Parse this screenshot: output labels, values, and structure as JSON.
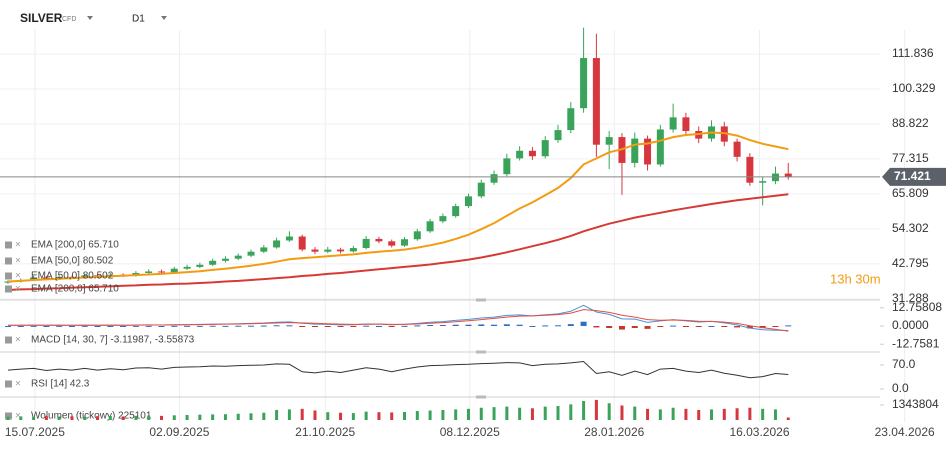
{
  "header": {
    "symbol": "SILVER",
    "kind": "CFD",
    "timeframe": "D1"
  },
  "chart_data": {
    "type": "candlestick",
    "up_color": "#3aa35a",
    "down_color": "#d6363d",
    "candles": [
      [
        36.6,
        37.4,
        36.2,
        37.0
      ],
      [
        37.0,
        38.0,
        36.7,
        37.5
      ],
      [
        37.5,
        38.9,
        37.2,
        38.3
      ],
      [
        38.3,
        38.8,
        37.4,
        37.8
      ],
      [
        37.8,
        39.1,
        37.5,
        38.5
      ],
      [
        38.5,
        38.9,
        37.8,
        38.2
      ],
      [
        38.2,
        39.6,
        37.9,
        39.0
      ],
      [
        39.0,
        39.5,
        38.2,
        38.6
      ],
      [
        38.6,
        39.8,
        38.3,
        39.2
      ],
      [
        39.2,
        39.7,
        38.5,
        38.9
      ],
      [
        38.9,
        40.4,
        38.6,
        39.8
      ],
      [
        39.8,
        41.0,
        39.4,
        40.3
      ],
      [
        40.3,
        40.9,
        39.6,
        40.0
      ],
      [
        40.0,
        41.8,
        39.7,
        41.2
      ],
      [
        41.2,
        42.5,
        40.8,
        41.8
      ],
      [
        41.8,
        43.2,
        41.4,
        42.5
      ],
      [
        42.5,
        44.5,
        42.1,
        43.8
      ],
      [
        43.8,
        45.3,
        43.3,
        44.5
      ],
      [
        44.5,
        46.2,
        44.0,
        45.5
      ],
      [
        45.5,
        47.5,
        45.0,
        46.8
      ],
      [
        46.8,
        49.0,
        46.3,
        48.2
      ],
      [
        48.2,
        51.4,
        47.8,
        50.5
      ],
      [
        50.5,
        53.5,
        50.0,
        51.8
      ],
      [
        51.8,
        52.4,
        46.9,
        47.5
      ],
      [
        47.5,
        48.3,
        46.0,
        46.8
      ],
      [
        46.8,
        48.4,
        46.3,
        47.5
      ],
      [
        47.5,
        48.1,
        46.2,
        46.9
      ],
      [
        46.9,
        48.7,
        46.5,
        48.0
      ],
      [
        48.0,
        51.9,
        47.6,
        51.0
      ],
      [
        51.0,
        51.7,
        49.6,
        50.2
      ],
      [
        50.2,
        50.8,
        48.2,
        48.8
      ],
      [
        48.8,
        51.6,
        48.4,
        50.9
      ],
      [
        50.9,
        54.3,
        50.4,
        53.5
      ],
      [
        53.5,
        57.6,
        53.0,
        56.8
      ],
      [
        56.8,
        59.4,
        56.2,
        58.5
      ],
      [
        58.5,
        62.6,
        58.0,
        61.8
      ],
      [
        61.8,
        65.9,
        61.2,
        65.0
      ],
      [
        65.0,
        70.5,
        64.4,
        69.5
      ],
      [
        69.5,
        73.5,
        68.8,
        72.3
      ],
      [
        72.3,
        79.0,
        71.6,
        77.5
      ],
      [
        77.5,
        81.5,
        76.8,
        80.0
      ],
      [
        80.0,
        81.2,
        77.0,
        78.2
      ],
      [
        78.2,
        84.8,
        77.5,
        83.5
      ],
      [
        83.5,
        88.5,
        82.6,
        86.8
      ],
      [
        86.8,
        96.0,
        85.8,
        94.0
      ],
      [
        94.0,
        120.5,
        92.5,
        110.5
      ],
      [
        110.5,
        118.5,
        78.0,
        82.0
      ],
      [
        82.0,
        86.5,
        74.0,
        84.5
      ],
      [
        84.5,
        85.8,
        65.5,
        76.0
      ],
      [
        76.0,
        86.0,
        74.5,
        84.0
      ],
      [
        84.0,
        85.0,
        73.5,
        75.5
      ],
      [
        75.5,
        88.5,
        74.8,
        87.0
      ],
      [
        87.0,
        95.5,
        86.0,
        91.0
      ],
      [
        91.0,
        92.5,
        84.8,
        86.5
      ],
      [
        86.5,
        88.0,
        82.5,
        84.0
      ],
      [
        84.0,
        90.0,
        83.0,
        88.0
      ],
      [
        88.0,
        89.5,
        81.5,
        83.0
      ],
      [
        83.0,
        84.0,
        76.5,
        78.0
      ],
      [
        78.0,
        79.2,
        68.5,
        69.5
      ],
      [
        69.5,
        71.5,
        62.0,
        70.0
      ],
      [
        70.0,
        74.8,
        69.0,
        72.5
      ],
      [
        72.5,
        76.0,
        70.5,
        71.421
      ]
    ],
    "series": [
      {
        "color": "#f39c12",
        "values": [
          37.0,
          37.2,
          37.5,
          37.7,
          37.9,
          38.1,
          38.3,
          38.5,
          38.7,
          38.9,
          39.1,
          39.3,
          39.5,
          39.8,
          40.1,
          40.4,
          40.8,
          41.2,
          41.7,
          42.2,
          42.8,
          43.5,
          44.3,
          44.7,
          45.0,
          45.3,
          45.6,
          45.9,
          46.4,
          46.8,
          47.1,
          47.5,
          48.1,
          48.9,
          49.8,
          51.0,
          52.4,
          54.2,
          56.2,
          58.6,
          61.0,
          63.0,
          65.4,
          67.8,
          71.0,
          75.5,
          77.5,
          79.5,
          80.5,
          82.0,
          82.4,
          83.3,
          84.5,
          85.2,
          85.5,
          86.0,
          85.8,
          85.0,
          83.5,
          82.3,
          81.4,
          80.502
        ]
      },
      {
        "color": "#d63a35",
        "values": [
          34.2,
          34.4,
          34.5,
          34.7,
          34.8,
          35.0,
          35.1,
          35.3,
          35.4,
          35.6,
          35.7,
          35.9,
          36.0,
          36.2,
          36.3,
          36.5,
          36.7,
          37.0,
          37.2,
          37.5,
          37.8,
          38.1,
          38.4,
          38.8,
          39.1,
          39.5,
          39.8,
          40.2,
          40.6,
          41.0,
          41.4,
          41.8,
          42.2,
          42.6,
          43.1,
          43.6,
          44.2,
          44.9,
          45.7,
          46.6,
          47.6,
          48.6,
          49.6,
          50.7,
          52.0,
          53.5,
          54.8,
          56.0,
          57.0,
          58.0,
          58.8,
          59.6,
          60.4,
          61.1,
          61.8,
          62.5,
          63.1,
          63.7,
          64.2,
          64.7,
          65.2,
          65.71
        ]
      }
    ],
    "legend": [
      "EMA [200,0] 65.710",
      "EMA [50,0] 80.502",
      "EMA [50,0] 80.502",
      "EMA [200,0] 65.710"
    ],
    "ylim": [
      30.91,
      127.95
    ],
    "yticks": [
      111.836,
      100.329,
      88.822,
      77.315,
      65.809,
      54.302,
      42.795,
      31.288
    ],
    "xlim": [
      -0.625,
      71.3
    ],
    "xticks": [
      {
        "value": 2.1,
        "label": "15.07.2025"
      },
      {
        "value": 13.4,
        "label": "02.09.2025"
      },
      {
        "value": 24.8,
        "label": "21.10.2025"
      },
      {
        "value": 36.1,
        "label": "08.12.2025"
      },
      {
        "value": 47.4,
        "label": "28.01.2026"
      },
      {
        "value": 58.75,
        "label": "16.03.2026"
      },
      {
        "value": 70.1,
        "label": "23.04.2026"
      }
    ],
    "grid": true,
    "last_price": 71.421,
    "countdown": "13h 30m",
    "macd": {
      "legend": "MACD [14, 30, 7] -3.11987, -3.55873",
      "macd_color": "#4a90d9",
      "signal_color": "#e74c3c",
      "pos_color": "#2f6fbf",
      "neg_color": "#c0392b",
      "macd": [
        0.5,
        0.5,
        0.6,
        0.5,
        0.6,
        0.5,
        0.6,
        0.5,
        0.6,
        0.5,
        0.7,
        0.8,
        0.7,
        0.9,
        1.0,
        1.1,
        1.3,
        1.4,
        1.6,
        1.8,
        2.1,
        2.6,
        2.9,
        1.9,
        1.3,
        1.1,
        0.8,
        0.9,
        1.4,
        1.3,
        0.9,
        1.2,
        1.8,
        2.6,
        3.1,
        3.9,
        4.6,
        5.6,
        6.2,
        7.4,
        7.8,
        7.1,
        7.9,
        8.5,
        10.3,
        14.5,
        9.8,
        8.1,
        5.0,
        4.8,
        2.5,
        3.6,
        4.5,
        3.6,
        2.8,
        3.2,
        2.2,
        0.8,
        -1.5,
        -2.6,
        -3.0,
        -3.11987
      ],
      "signal": [
        0.5,
        0.5,
        0.5,
        0.5,
        0.5,
        0.5,
        0.5,
        0.5,
        0.6,
        0.5,
        0.6,
        0.7,
        0.7,
        0.8,
        0.9,
        1.0,
        1.1,
        1.3,
        1.4,
        1.6,
        1.8,
        2.1,
        2.4,
        2.2,
        1.9,
        1.6,
        1.3,
        1.1,
        1.2,
        1.3,
        1.1,
        1.1,
        1.4,
        1.9,
        2.4,
        3.0,
        3.7,
        4.5,
        5.3,
        6.2,
        6.9,
        7.1,
        7.5,
        8.0,
        9.0,
        11.5,
        10.8,
        9.5,
        7.5,
        6.2,
        4.5,
        4.0,
        4.2,
        3.9,
        3.3,
        3.2,
        2.7,
        1.8,
        0.2,
        -1.1,
        -2.4,
        -3.55873
      ],
      "histogram": [
        0,
        0,
        0.1,
        0,
        0.1,
        0,
        0.1,
        0,
        0,
        0,
        0.1,
        0.1,
        0,
        0.1,
        0.1,
        0.1,
        0.2,
        0.1,
        0.2,
        0.2,
        0.3,
        0.5,
        0.5,
        -0.3,
        -0.6,
        -0.5,
        -0.5,
        -0.2,
        0.2,
        0,
        -0.2,
        0.1,
        0.4,
        0.7,
        0.7,
        0.9,
        0.9,
        1.1,
        0.9,
        1.2,
        0.9,
        0,
        0.4,
        0.5,
        1.3,
        3.0,
        -1.0,
        -1.4,
        -2.5,
        -1.4,
        -2.0,
        -0.4,
        0.3,
        -0.3,
        -0.5,
        0,
        -0.5,
        -1.0,
        -1.7,
        -1.5,
        -0.6,
        0.43886
      ],
      "ylim": [
        -16.8,
        18.2
      ],
      "yticks": [
        12.75808,
        {
          "value": 0,
          "label": "0.0000"
        },
        -12.7581
      ]
    },
    "rsi": {
      "legend": "RSI [14] 42.3",
      "color": "#333333",
      "values": [
        55,
        58,
        60,
        54,
        58,
        55,
        60,
        55,
        59,
        56,
        61,
        62,
        58,
        63,
        64,
        65,
        67,
        66,
        68,
        69,
        70,
        73,
        72,
        50,
        47,
        52,
        48,
        55,
        62,
        58,
        50,
        58,
        64,
        68,
        69,
        71,
        72,
        74,
        75,
        77,
        76,
        68,
        72,
        73,
        76,
        80,
        45,
        50,
        40,
        52,
        42,
        58,
        60,
        52,
        48,
        55,
        46,
        40,
        33,
        36,
        45,
        42.3
      ],
      "ylim": [
        -17.5,
        99
      ],
      "yticks": [
        {
          "value": 70,
          "label": "70.0"
        },
        {
          "value": 0,
          "label": "0.0"
        }
      ]
    },
    "volume": {
      "legend": "Wolumen (tickowy) 225101",
      "values": [
        300000,
        320000,
        280000,
        350000,
        310000,
        330000,
        300000,
        340000,
        360000,
        320000,
        380000,
        400000,
        370000,
        420000,
        450000,
        480000,
        500000,
        520000,
        560000,
        600000,
        650000,
        900000,
        950000,
        1000000,
        850000,
        700000,
        650000,
        620000,
        750000,
        700000,
        680000,
        720000,
        800000,
        850000,
        900000,
        950000,
        1000000,
        1100000,
        1150000,
        1200000,
        1100000,
        1050000,
        1200000,
        1250000,
        1400000,
        1700000,
        1800000,
        1500000,
        1300000,
        1200000,
        1000000,
        950000,
        1100000,
        1000000,
        900000,
        950000,
        1000000,
        1050000,
        1100000,
        1000000,
        950000,
        225101
      ],
      "ylim": [
        0,
        1970000
      ],
      "yticks": [
        1343804
      ]
    }
  }
}
